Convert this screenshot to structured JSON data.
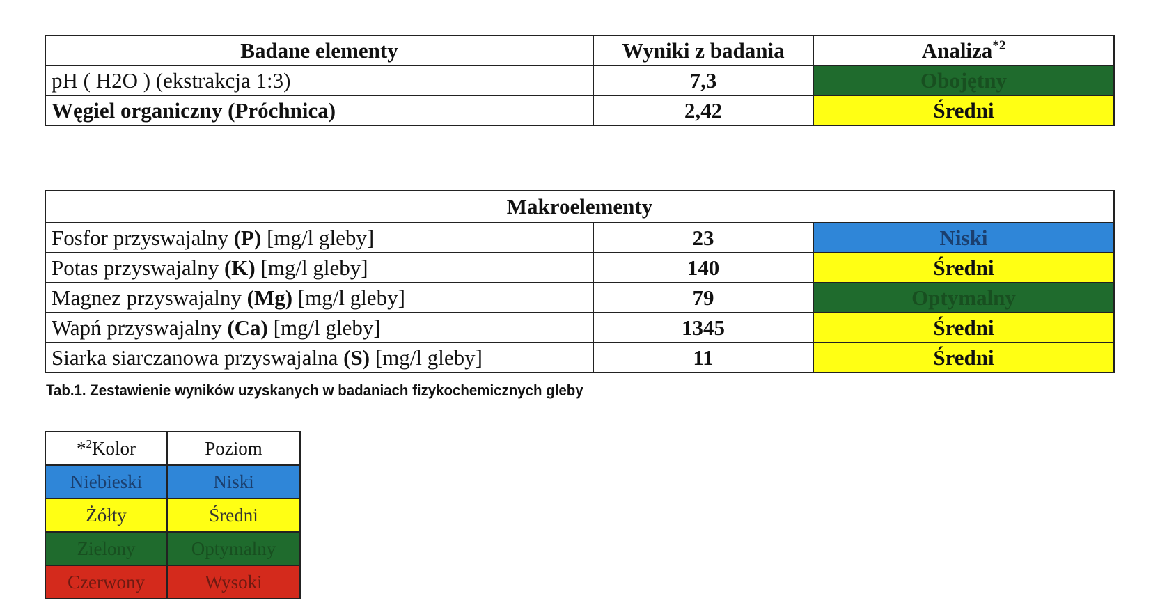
{
  "table1": {
    "header": [
      "Badane elementy",
      "Wyniki z badania",
      "Analiza"
    ],
    "header_sup": "*2",
    "rows": [
      {
        "name": "pH ( H2O )  (ekstrakcja 1:3)",
        "result": "7,3",
        "analysis": "Obojętny",
        "color": "#1f6b2d",
        "text_color": "#184f20"
      },
      {
        "name": "Węgiel organiczny (Próchnica)",
        "result": "2,42",
        "analysis": "Średni",
        "color": "#ffff14",
        "text_color": "#111111"
      }
    ]
  },
  "table2": {
    "title": "Makroelementy",
    "rows": [
      {
        "name": "Fosfor przyswajalny",
        "symbol": "(P)",
        "unit": "[mg/l gleby]",
        "result": 23,
        "analysis": "Niski",
        "color": "#2f86d8",
        "text_color": "#1b3f6e"
      },
      {
        "name": "Potas przyswajalny ",
        "symbol": "(K)",
        "unit": "[mg/l gleby]",
        "result": 140,
        "analysis": "Średni",
        "color": "#ffff14",
        "text_color": "#111111"
      },
      {
        "name": "Magnez przyswajalny",
        "symbol": "(Mg)",
        "unit": "[mg/l gleby]",
        "result": 79,
        "analysis": "Optymalny",
        "color": "#1f6b2d",
        "text_color": "#184f20"
      },
      {
        "name": "Wapń przyswajalny",
        "symbol": "(Ca)",
        "unit": "[mg/l gleby]",
        "result": 1345,
        "analysis": "Średni",
        "color": "#ffff14",
        "text_color": "#111111"
      },
      {
        "name": "Siarka siarczanowa przyswajalna",
        "symbol": "(S)",
        "unit": "[mg/l gleby]",
        "result": 11,
        "analysis": "Średni",
        "color": "#ffff14",
        "text_color": "#111111"
      }
    ]
  },
  "caption": "Tab.1. Zestawienie wyników uzyskanych w badaniach fizykochemicznych gleby",
  "legend": {
    "header_prefix": "*",
    "header_sup": "2",
    "header": [
      "Kolor",
      "Poziom"
    ],
    "rows": [
      {
        "color_name": "Niebieski",
        "level": "Niski",
        "color": "#2f86d8",
        "text_color": "#1b3f6e"
      },
      {
        "color_name": "Żółty",
        "level": "Średni",
        "color": "#ffff14",
        "text_color": "#333333"
      },
      {
        "color_name": "Zielony",
        "level": "Optymalny",
        "color": "#1f6b2d",
        "text_color": "#184f20"
      },
      {
        "color_name": "Czerwony",
        "level": "Wysoki",
        "color": "#d42a1c",
        "text_color": "#6e1a12"
      }
    ]
  }
}
